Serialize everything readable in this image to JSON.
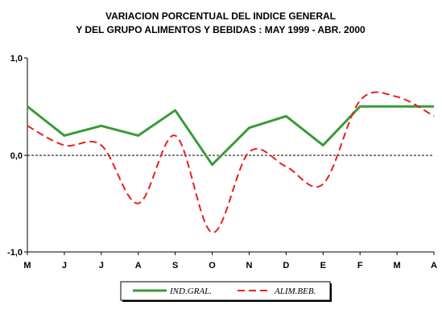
{
  "chart_data": {
    "type": "line",
    "title_line1": "VARIACION PORCENTUAL DEL INDICE GENERAL",
    "title_line2": "Y DEL GRUPO ALIMENTOS Y BEBIDAS : MAY 1999 - ABR. 2000",
    "categories": [
      "M",
      "J",
      "J",
      "A",
      "S",
      "O",
      "N",
      "D",
      "E",
      "F",
      "M",
      "A"
    ],
    "y_tick_labels": [
      "1,0",
      "0,0",
      "-1,0"
    ],
    "ylim": [
      -1.0,
      1.0
    ],
    "zero_line": "dashed",
    "legend_placement": "bottom",
    "series": [
      {
        "name": "IND.GRAL.",
        "color": "#3a9a3a",
        "style": "solid",
        "smooth": false,
        "values": [
          0.5,
          0.2,
          0.3,
          0.2,
          0.46,
          -0.1,
          0.28,
          0.4,
          0.1,
          0.5,
          0.5,
          0.5
        ]
      },
      {
        "name": "ALIM.BEB.",
        "color": "#e8201a",
        "style": "dashed",
        "smooth": true,
        "values": [
          0.3,
          0.1,
          0.1,
          -0.5,
          0.2,
          -0.8,
          0.03,
          -0.12,
          -0.3,
          0.56,
          0.6,
          0.4
        ]
      }
    ]
  }
}
